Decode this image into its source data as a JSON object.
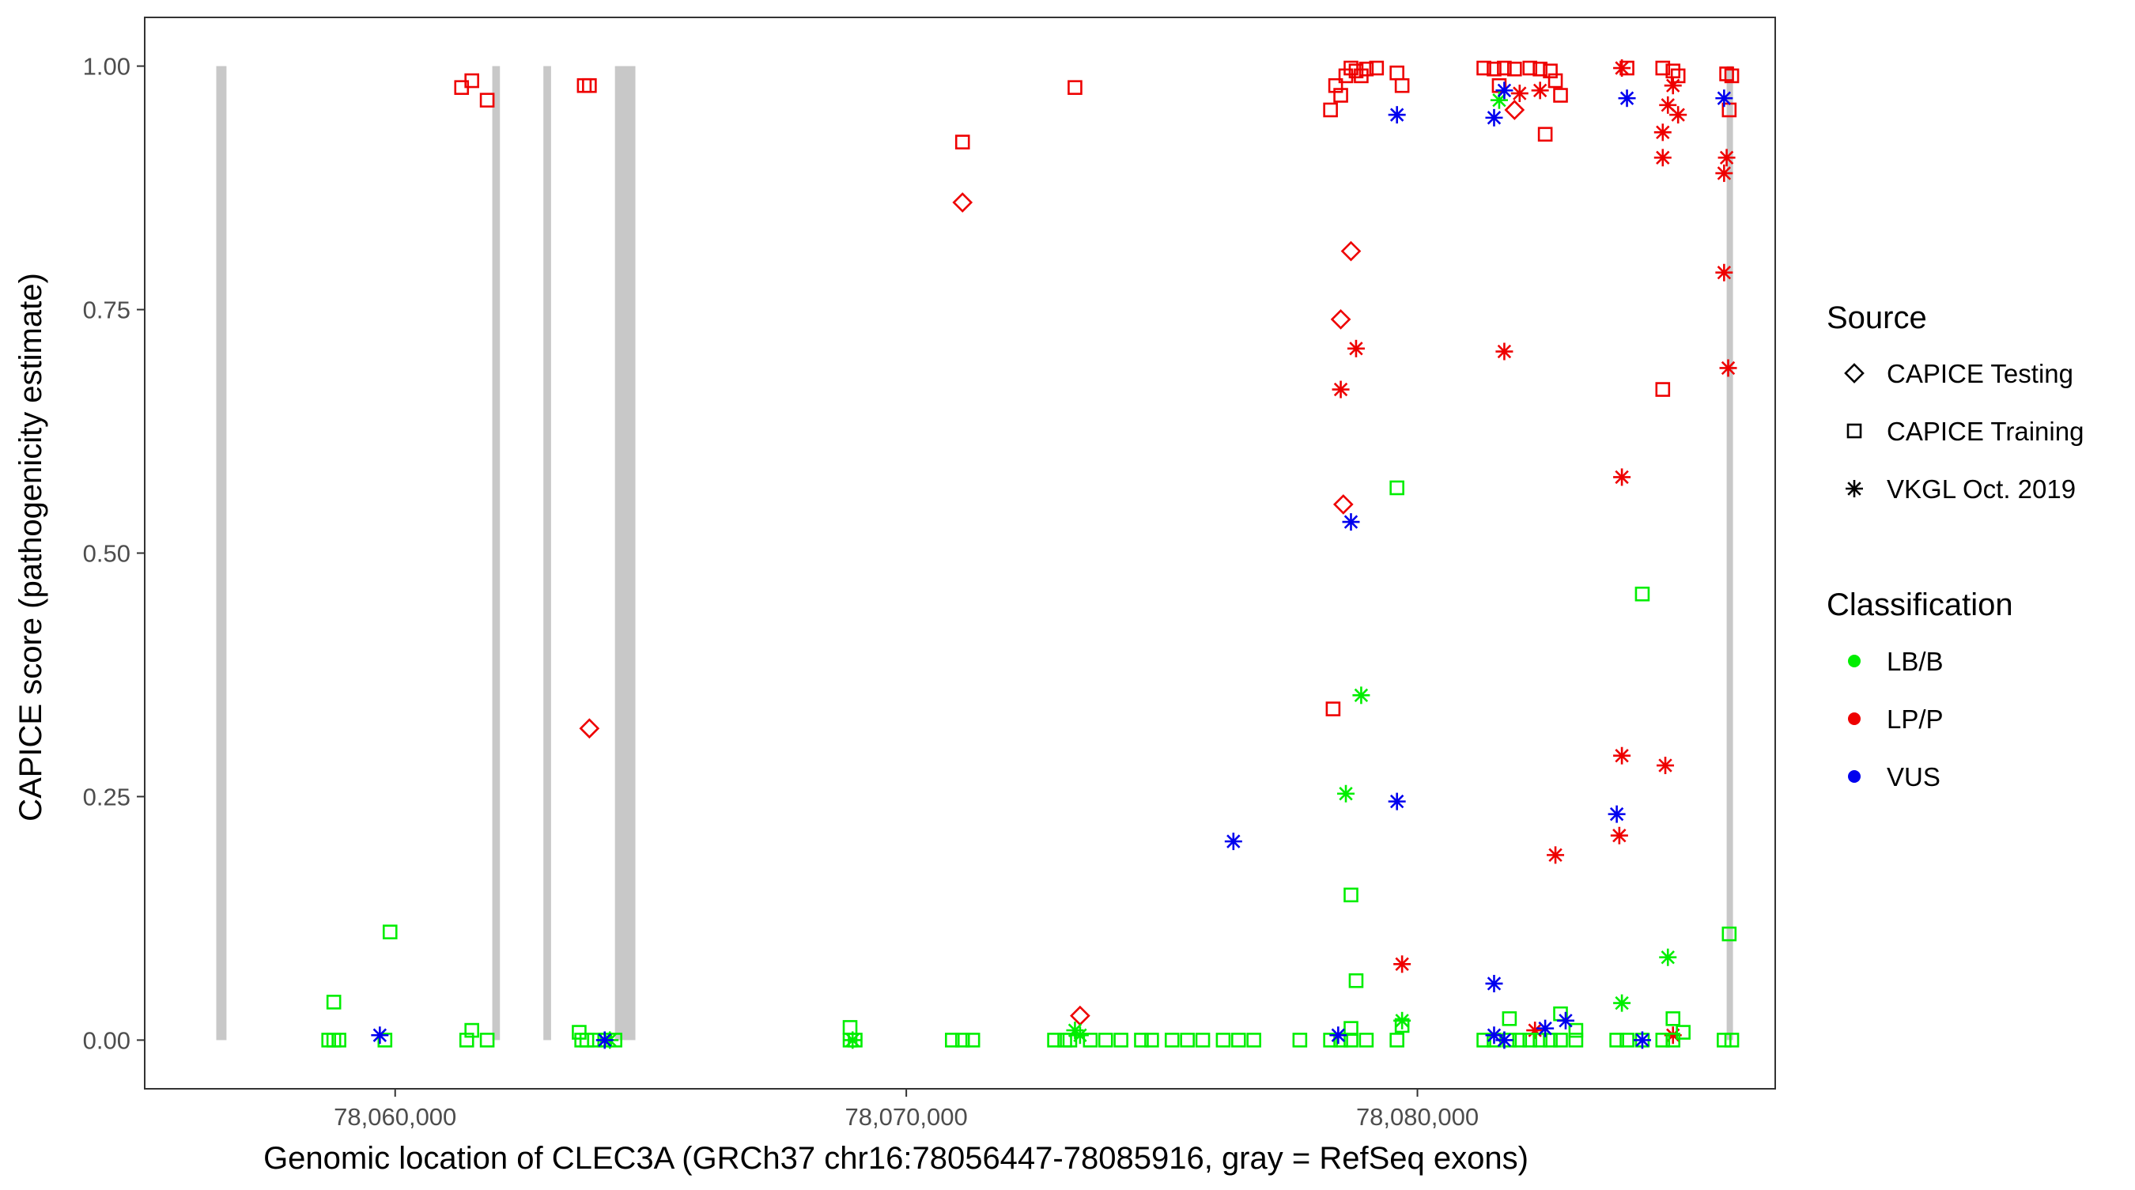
{
  "chart_data": {
    "type": "scatter",
    "xlabel": "Genomic location of CLEC3A (GRCh37 chr16:78056447-78085916, gray = RefSeq exons)",
    "ylabel": "CAPICE score (pathogenicity estimate)",
    "xlim": [
      78055100,
      78087000
    ],
    "ylim": [
      -0.05,
      1.05
    ],
    "x_ticks": [
      78060000,
      78070000,
      78080000
    ],
    "x_tick_labels": [
      "78,060,000",
      "78,070,000",
      "78,080,000"
    ],
    "y_ticks": [
      0,
      0.25,
      0.5,
      0.75,
      1
    ],
    "y_tick_labels": [
      "0.00",
      "0.25",
      "0.50",
      "0.75",
      "1.00"
    ],
    "grid": false,
    "legend_position": "right",
    "exons": [
      [
        78056500,
        78056700
      ],
      [
        78061900,
        78062050
      ],
      [
        78062900,
        78063050
      ],
      [
        78064300,
        78064700
      ],
      [
        78086050,
        78086150
      ]
    ],
    "exon_color": "#c8c8c8",
    "legend": {
      "source_title": "Source",
      "source_items": [
        {
          "label": "CAPICE Testing",
          "shape": "diamond"
        },
        {
          "label": "CAPICE Training",
          "shape": "square"
        },
        {
          "label": "VKGL Oct. 2019",
          "shape": "asterisk"
        }
      ],
      "class_title": "Classification",
      "class_items": [
        {
          "label": "LB/B",
          "color": "#00ee00"
        },
        {
          "label": "LP/P",
          "color": "#ee0000"
        },
        {
          "label": "VUS",
          "color": "#0000ee"
        }
      ]
    },
    "series": [
      {
        "source": "CAPICE Testing",
        "classification": "LP/P",
        "points": [
          [
            78063800,
            0.32
          ],
          [
            78071100,
            0.86
          ],
          [
            78078500,
            0.74
          ],
          [
            78078700,
            0.81
          ],
          [
            78078550,
            0.55
          ],
          [
            78073400,
            0.025
          ],
          [
            78081900,
            0.955
          ]
        ]
      },
      {
        "source": "CAPICE Training",
        "classification": "LP/P",
        "points": [
          [
            78061300,
            0.978
          ],
          [
            78061500,
            0.985
          ],
          [
            78061800,
            0.965
          ],
          [
            78063700,
            0.98
          ],
          [
            78063800,
            0.98
          ],
          [
            78071100,
            0.922
          ],
          [
            78073300,
            0.978
          ],
          [
            78078300,
            0.955
          ],
          [
            78078400,
            0.98
          ],
          [
            78078500,
            0.97
          ],
          [
            78078600,
            0.99
          ],
          [
            78078700,
            0.998
          ],
          [
            78078800,
            0.995
          ],
          [
            78078900,
            0.99
          ],
          [
            78079000,
            0.997
          ],
          [
            78079200,
            0.998
          ],
          [
            78079600,
            0.993
          ],
          [
            78079700,
            0.98
          ],
          [
            78078350,
            0.34
          ],
          [
            78081300,
            0.998
          ],
          [
            78081500,
            0.997
          ],
          [
            78081700,
            0.998
          ],
          [
            78081900,
            0.997
          ],
          [
            78081600,
            0.98
          ],
          [
            78082200,
            0.998
          ],
          [
            78082400,
            0.997
          ],
          [
            78082600,
            0.995
          ],
          [
            78082700,
            0.985
          ],
          [
            78082500,
            0.93
          ],
          [
            78082800,
            0.97
          ],
          [
            78084100,
            0.998
          ],
          [
            78084800,
            0.998
          ],
          [
            78085000,
            0.995
          ],
          [
            78085100,
            0.99
          ],
          [
            78084800,
            0.668
          ],
          [
            78086050,
            0.992
          ],
          [
            78086150,
            0.99
          ],
          [
            78086100,
            0.955
          ]
        ]
      },
      {
        "source": "VKGL Oct. 2019",
        "classification": "LP/P",
        "points": [
          [
            78078800,
            0.71
          ],
          [
            78078500,
            0.668
          ],
          [
            78079700,
            0.078
          ],
          [
            78081700,
            0.707
          ],
          [
            78082000,
            0.972
          ],
          [
            78082400,
            0.975
          ],
          [
            78082700,
            0.19
          ],
          [
            78084000,
            0.998
          ],
          [
            78084000,
            0.578
          ],
          [
            78084000,
            0.292
          ],
          [
            78083950,
            0.21
          ],
          [
            78084800,
            0.932
          ],
          [
            78084800,
            0.906
          ],
          [
            78084900,
            0.96
          ],
          [
            78085000,
            0.98
          ],
          [
            78085100,
            0.95
          ],
          [
            78084850,
            0.282
          ],
          [
            78086000,
            0.89
          ],
          [
            78086050,
            0.906
          ],
          [
            78086000,
            0.788
          ],
          [
            78086080,
            0.69
          ],
          [
            78082300,
            0.01
          ],
          [
            78085000,
            0.005
          ]
        ]
      },
      {
        "source": "CAPICE Training",
        "classification": "LB/B",
        "points": [
          [
            78058700,
            0.0
          ],
          [
            78058800,
            0.0
          ],
          [
            78058900,
            0.0
          ],
          [
            78058800,
            0.039
          ],
          [
            78059900,
            0.111
          ],
          [
            78059800,
            0.0
          ],
          [
            78061400,
            0.0
          ],
          [
            78061500,
            0.01
          ],
          [
            78061800,
            0.0
          ],
          [
            78063600,
            0.008
          ],
          [
            78063650,
            0.0
          ],
          [
            78063750,
            0.0
          ],
          [
            78063900,
            0.0
          ],
          [
            78064100,
            0.0
          ],
          [
            78064300,
            0.0
          ],
          [
            78068900,
            0.0
          ],
          [
            78069000,
            0.0
          ],
          [
            78068900,
            0.013
          ],
          [
            78070900,
            0.0
          ],
          [
            78071100,
            0.0
          ],
          [
            78071300,
            0.0
          ],
          [
            78072900,
            0.0
          ],
          [
            78073100,
            0.0
          ],
          [
            78073200,
            0.0
          ],
          [
            78073600,
            0.0
          ],
          [
            78073900,
            0.0
          ],
          [
            78074200,
            0.0
          ],
          [
            78074600,
            0.0
          ],
          [
            78074800,
            0.0
          ],
          [
            78075200,
            0.0
          ],
          [
            78075500,
            0.0
          ],
          [
            78075800,
            0.0
          ],
          [
            78076200,
            0.0
          ],
          [
            78076500,
            0.0
          ],
          [
            78076800,
            0.0
          ],
          [
            78077700,
            0.0
          ],
          [
            78078300,
            0.0
          ],
          [
            78078500,
            0.0
          ],
          [
            78078700,
            0.0
          ],
          [
            78079000,
            0.0
          ],
          [
            78078700,
            0.149
          ],
          [
            78078800,
            0.061
          ],
          [
            78078700,
            0.012
          ],
          [
            78079600,
            0.567
          ],
          [
            78079600,
            0.0
          ],
          [
            78079700,
            0.015
          ],
          [
            78081300,
            0.0
          ],
          [
            78081500,
            0.0
          ],
          [
            78081800,
            0.0
          ],
          [
            78081800,
            0.022
          ],
          [
            78082000,
            0.0
          ],
          [
            78082200,
            0.0
          ],
          [
            78082400,
            0.0
          ],
          [
            78082600,
            0.0
          ],
          [
            78082800,
            0.0
          ],
          [
            78083100,
            0.0
          ],
          [
            78082800,
            0.027
          ],
          [
            78083100,
            0.01
          ],
          [
            78083900,
            0.0
          ],
          [
            78084100,
            0.0
          ],
          [
            78084400,
            0.0
          ],
          [
            78084400,
            0.458
          ],
          [
            78084800,
            0.0
          ],
          [
            78085000,
            0.0
          ],
          [
            78085000,
            0.022
          ],
          [
            78085200,
            0.008
          ],
          [
            78086000,
            0.0
          ],
          [
            78086150,
            0.0
          ],
          [
            78086100,
            0.109
          ]
        ]
      },
      {
        "source": "VKGL Oct. 2019",
        "classification": "LB/B",
        "points": [
          [
            78078900,
            0.354
          ],
          [
            78078600,
            0.253
          ],
          [
            78079700,
            0.02
          ],
          [
            78073300,
            0.01
          ],
          [
            78073400,
            0.005
          ],
          [
            78084000,
            0.038
          ],
          [
            78084900,
            0.085
          ],
          [
            78081600,
            0.965
          ],
          [
            78064200,
            0.0
          ],
          [
            78068950,
            0.0
          ]
        ]
      },
      {
        "source": "VKGL Oct. 2019",
        "classification": "VUS",
        "points": [
          [
            78059700,
            0.005
          ],
          [
            78064100,
            0.0
          ],
          [
            78076400,
            0.204
          ],
          [
            78078700,
            0.532
          ],
          [
            78079600,
            0.95
          ],
          [
            78079600,
            0.245
          ],
          [
            78081500,
            0.947
          ],
          [
            78081700,
            0.975
          ],
          [
            78081500,
            0.058
          ],
          [
            78081500,
            0.005
          ],
          [
            78081700,
            0.0
          ],
          [
            78082500,
            0.012
          ],
          [
            78082900,
            0.02
          ],
          [
            78084100,
            0.967
          ],
          [
            78083900,
            0.232
          ],
          [
            78084400,
            0.0
          ],
          [
            78086000,
            0.967
          ],
          [
            78078450,
            0.005
          ]
        ]
      }
    ]
  }
}
